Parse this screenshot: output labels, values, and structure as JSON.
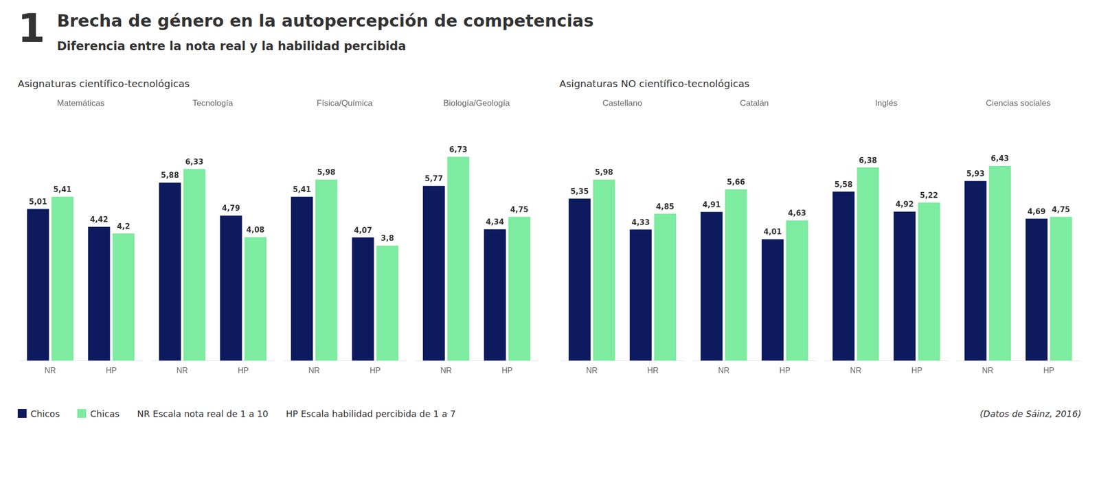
{
  "title": "Brecha de género en la autopercepción de competencias",
  "subtitle": "Diferencia entre la nota real y la habilidad percibida",
  "annotations": [
    "1",
    "NR Escala nota real de 1 a 10",
    "HP Escala habilidad percibida de 1 a 7",
    "(Datos de Sáinz, 2016)"
  ],
  "legend": "bottom left",
  "chart_data": [
    {
      "type": "bar",
      "title": "Matemáticas",
      "annotations": [
        "Asignaturas científico-tecnológicas"
      ],
      "categories": [
        "NR",
        "HP"
      ],
      "series": [
        {
          "name": "Chicos",
          "color": "#0d1b5e",
          "values": [
            5.01,
            4.42
          ],
          "value_labels": [
            "5,01",
            "4,42"
          ]
        },
        {
          "name": "Chicas",
          "color": "#7deba0",
          "values": [
            5.41,
            4.2
          ],
          "value_labels": [
            "5,41",
            "4,2"
          ]
        }
      ],
      "ylim": [
        0,
        8
      ],
      "grid": false,
      "data_labels": true,
      "tick_labels": "x"
    },
    {
      "type": "bar",
      "title": "Tecnología",
      "categories": [
        "NR",
        "HP"
      ],
      "series": [
        {
          "name": "Chicos",
          "color": "#0d1b5e",
          "values": [
            5.88,
            4.79
          ],
          "value_labels": [
            "5,88",
            "4,79"
          ]
        },
        {
          "name": "Chicas",
          "color": "#7deba0",
          "values": [
            6.33,
            4.08
          ],
          "value_labels": [
            "6,33",
            "4,08"
          ]
        }
      ],
      "ylim": [
        0,
        8
      ],
      "grid": false,
      "data_labels": true,
      "tick_labels": "x"
    },
    {
      "type": "bar",
      "title": "Física/Química",
      "categories": [
        "NR",
        "HP"
      ],
      "series": [
        {
          "name": "Chicos",
          "color": "#0d1b5e",
          "values": [
            5.41,
            4.07
          ],
          "value_labels": [
            "5,41",
            "4,07"
          ]
        },
        {
          "name": "Chicas",
          "color": "#7deba0",
          "values": [
            5.98,
            3.8
          ],
          "value_labels": [
            "5,98",
            "3,8"
          ]
        }
      ],
      "ylim": [
        0,
        8
      ],
      "grid": false,
      "data_labels": true,
      "tick_labels": "x"
    },
    {
      "type": "bar",
      "title": "Biología/Geología",
      "categories": [
        "NR",
        "HP"
      ],
      "series": [
        {
          "name": "Chicos",
          "color": "#0d1b5e",
          "values": [
            5.77,
            4.34
          ],
          "value_labels": [
            "5,77",
            "4,34"
          ]
        },
        {
          "name": "Chicas",
          "color": "#7deba0",
          "values": [
            6.73,
            4.75
          ],
          "value_labels": [
            "6,73",
            "4,75"
          ]
        }
      ],
      "ylim": [
        0,
        8
      ],
      "grid": false,
      "data_labels": true,
      "tick_labels": "x"
    },
    {
      "type": "bar",
      "title": "Castellano",
      "annotations": [
        "Asignaturas NO científico-tecnológicas"
      ],
      "categories": [
        "NR",
        "HR"
      ],
      "series": [
        {
          "name": "Chicos",
          "color": "#0d1b5e",
          "values": [
            5.35,
            4.33
          ],
          "value_labels": [
            "5,35",
            "4,33"
          ]
        },
        {
          "name": "Chicas",
          "color": "#7deba0",
          "values": [
            5.98,
            4.85
          ],
          "value_labels": [
            "5,98",
            "4,85"
          ]
        }
      ],
      "ylim": [
        0,
        8
      ],
      "grid": false,
      "data_labels": true,
      "tick_labels": "x"
    },
    {
      "type": "bar",
      "title": "Catalán",
      "categories": [
        "NR",
        "HP"
      ],
      "series": [
        {
          "name": "Chicos",
          "color": "#0d1b5e",
          "values": [
            4.91,
            4.01
          ],
          "value_labels": [
            "4,91",
            "4,01"
          ]
        },
        {
          "name": "Chicas",
          "color": "#7deba0",
          "values": [
            5.66,
            4.63
          ],
          "value_labels": [
            "5,66",
            "4,63"
          ]
        }
      ],
      "ylim": [
        0,
        8
      ],
      "grid": false,
      "data_labels": true,
      "tick_labels": "x"
    },
    {
      "type": "bar",
      "title": "Inglés",
      "categories": [
        "NR",
        "HP"
      ],
      "series": [
        {
          "name": "Chicos",
          "color": "#0d1b5e",
          "values": [
            5.58,
            4.92
          ],
          "value_labels": [
            "5,58",
            "4,92"
          ]
        },
        {
          "name": "Chicas",
          "color": "#7deba0",
          "values": [
            6.38,
            5.22
          ],
          "value_labels": [
            "6,38",
            "5,22"
          ]
        }
      ],
      "ylim": [
        0,
        8
      ],
      "grid": false,
      "data_labels": true,
      "tick_labels": "x"
    },
    {
      "type": "bar",
      "title": "Ciencias sociales",
      "categories": [
        "NR",
        "HP"
      ],
      "series": [
        {
          "name": "Chicos",
          "color": "#0d1b5e",
          "values": [
            5.93,
            4.69
          ],
          "value_labels": [
            "5,93",
            "4,69"
          ]
        },
        {
          "name": "Chicas",
          "color": "#7deba0",
          "values": [
            6.43,
            4.75
          ],
          "value_labels": [
            "6,43",
            "4,75"
          ]
        }
      ],
      "ylim": [
        0,
        8
      ],
      "grid": false,
      "data_labels": true,
      "tick_labels": "x"
    }
  ]
}
